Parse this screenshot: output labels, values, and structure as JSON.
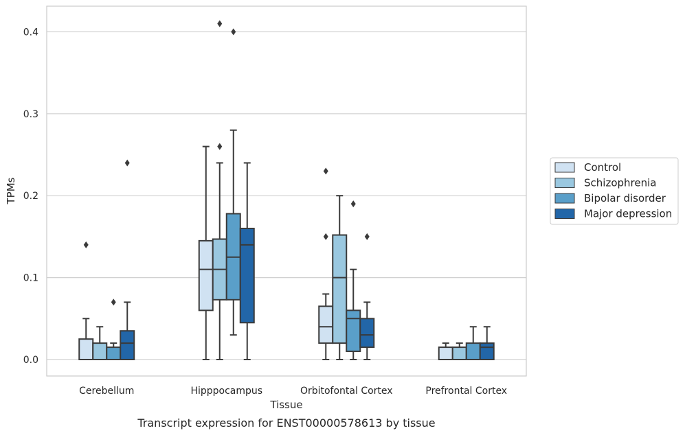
{
  "caption": "Transcript expression for ENST00000578613 by tissue",
  "chart_data": {
    "type": "boxplot",
    "xlabel": "Tissue",
    "ylabel": "TPMs",
    "ylim": [
      -0.02,
      0.43
    ],
    "yticks": [
      0.0,
      0.1,
      0.2,
      0.3,
      0.4
    ],
    "ytick_labels": [
      "0.0",
      "0.1",
      "0.2",
      "0.3",
      "0.4"
    ],
    "grid": "horizontal",
    "legend_position": "right",
    "categories": [
      "Cerebellum",
      "Hipppocampus",
      "Orbitofontal Cortex",
      "Prefrontal Cortex"
    ],
    "series": [
      {
        "name": "Control",
        "color": "#d0e2f2",
        "boxes": [
          {
            "whislo": 0.0,
            "q1": 0.0,
            "med": 0.0,
            "q3": 0.025,
            "whishi": 0.05,
            "fliers": [
              0.14
            ]
          },
          {
            "whislo": 0.0,
            "q1": 0.06,
            "med": 0.11,
            "q3": 0.145,
            "whishi": 0.26,
            "fliers": []
          },
          {
            "whislo": 0.0,
            "q1": 0.02,
            "med": 0.04,
            "q3": 0.065,
            "whishi": 0.08,
            "fliers": [
              0.15,
              0.23
            ]
          },
          {
            "whislo": 0.0,
            "q1": 0.0,
            "med": 0.0,
            "q3": 0.015,
            "whishi": 0.02,
            "fliers": []
          }
        ]
      },
      {
        "name": "Schizophrenia",
        "color": "#9ac8e0",
        "boxes": [
          {
            "whislo": 0.0,
            "q1": 0.0,
            "med": 0.0,
            "q3": 0.02,
            "whishi": 0.04,
            "fliers": []
          },
          {
            "whislo": 0.0,
            "q1": 0.073,
            "med": 0.11,
            "q3": 0.147,
            "whishi": 0.24,
            "fliers": [
              0.26,
              0.41
            ]
          },
          {
            "whislo": 0.0,
            "q1": 0.02,
            "med": 0.1,
            "q3": 0.152,
            "whishi": 0.2,
            "fliers": []
          },
          {
            "whislo": 0.0,
            "q1": 0.0,
            "med": 0.0,
            "q3": 0.015,
            "whishi": 0.02,
            "fliers": []
          }
        ]
      },
      {
        "name": "Bipolar disorder",
        "color": "#5a9fc9",
        "boxes": [
          {
            "whislo": 0.0,
            "q1": 0.0,
            "med": 0.0,
            "q3": 0.015,
            "whishi": 0.02,
            "fliers": [
              0.07
            ]
          },
          {
            "whislo": 0.03,
            "q1": 0.073,
            "med": 0.125,
            "q3": 0.178,
            "whishi": 0.28,
            "fliers": [
              0.4
            ]
          },
          {
            "whislo": 0.0,
            "q1": 0.01,
            "med": 0.05,
            "q3": 0.06,
            "whishi": 0.11,
            "fliers": [
              0.19
            ]
          },
          {
            "whislo": 0.0,
            "q1": 0.0,
            "med": 0.0,
            "q3": 0.02,
            "whishi": 0.04,
            "fliers": []
          }
        ]
      },
      {
        "name": "Major depression",
        "color": "#2266a8",
        "boxes": [
          {
            "whislo": 0.0,
            "q1": 0.0,
            "med": 0.02,
            "q3": 0.035,
            "whishi": 0.07,
            "fliers": [
              0.24
            ]
          },
          {
            "whislo": 0.0,
            "q1": 0.045,
            "med": 0.14,
            "q3": 0.16,
            "whishi": 0.24,
            "fliers": []
          },
          {
            "whislo": 0.0,
            "q1": 0.015,
            "med": 0.03,
            "q3": 0.05,
            "whishi": 0.07,
            "fliers": [
              0.15
            ]
          },
          {
            "whislo": 0.0,
            "q1": 0.0,
            "med": 0.015,
            "q3": 0.02,
            "whishi": 0.04,
            "fliers": []
          }
        ]
      }
    ]
  }
}
